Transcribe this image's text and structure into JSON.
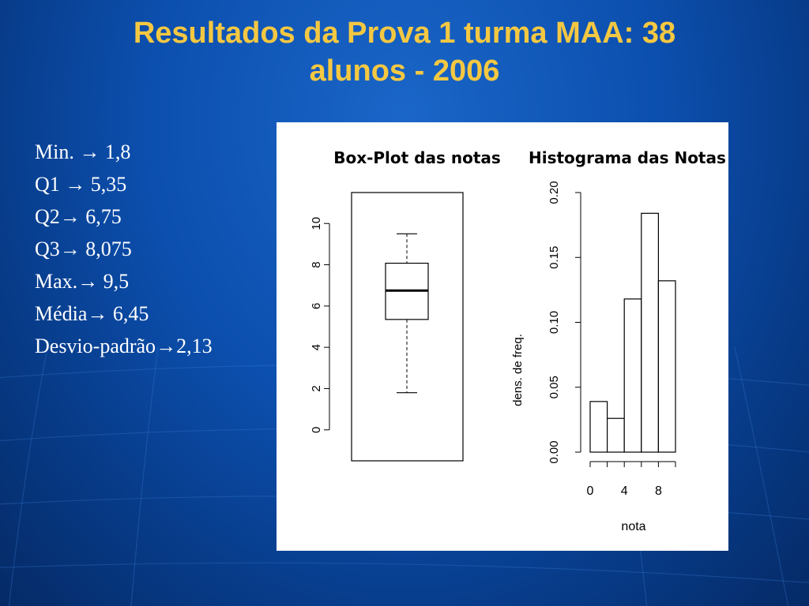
{
  "slide": {
    "title_line1": "Resultados da Prova 1 turma MAA: 38",
    "title_line2": "alunos - 2006"
  },
  "stats": [
    {
      "label": "Min.",
      "arrow": "→",
      "value": "1,8"
    },
    {
      "label": "Q1",
      "arrow": "→",
      "value": "5,35"
    },
    {
      "label": "Q2",
      "arrow": "→",
      "value": "6,75"
    },
    {
      "label": "Q3",
      "arrow": "→",
      "value": "8,075"
    },
    {
      "label": "Max.",
      "arrow": "→",
      "value": "9,5"
    },
    {
      "label": "Média",
      "arrow": "→",
      "value": "6,45"
    },
    {
      "label": "Desvio-padrão",
      "arrow": "→",
      "value": "2,13"
    }
  ],
  "chart_data": [
    {
      "type": "boxplot",
      "title": "Box-Plot das notas",
      "min": 1.8,
      "q1": 5.35,
      "median": 6.75,
      "q3": 8.075,
      "max": 9.5,
      "ylim": [
        -1.5,
        11.5
      ],
      "yticks": [
        0,
        2,
        4,
        6,
        8,
        10
      ],
      "ytick_labels": [
        "0",
        "2",
        "4",
        "6",
        "8",
        "10"
      ]
    },
    {
      "type": "bar",
      "title": "Histograma das Notas",
      "xlabel": "nota",
      "ylabel": "dens. de freq.",
      "bins": [
        [
          0,
          2
        ],
        [
          2,
          4
        ],
        [
          4,
          6
        ],
        [
          6,
          8
        ],
        [
          8,
          10
        ]
      ],
      "values": [
        0.039,
        0.026,
        0.118,
        0.184,
        0.132
      ],
      "ylim": [
        0,
        0.2
      ],
      "xlim": [
        0,
        10
      ],
      "yticks": [
        0,
        0.05,
        0.1,
        0.15,
        0.2
      ],
      "ytick_labels": [
        "0.00",
        "0.05",
        "0.10",
        "0.15",
        "0.20"
      ],
      "xticks": [
        0,
        4,
        8
      ],
      "xtick_labels": [
        "0",
        "4",
        "8"
      ]
    }
  ]
}
